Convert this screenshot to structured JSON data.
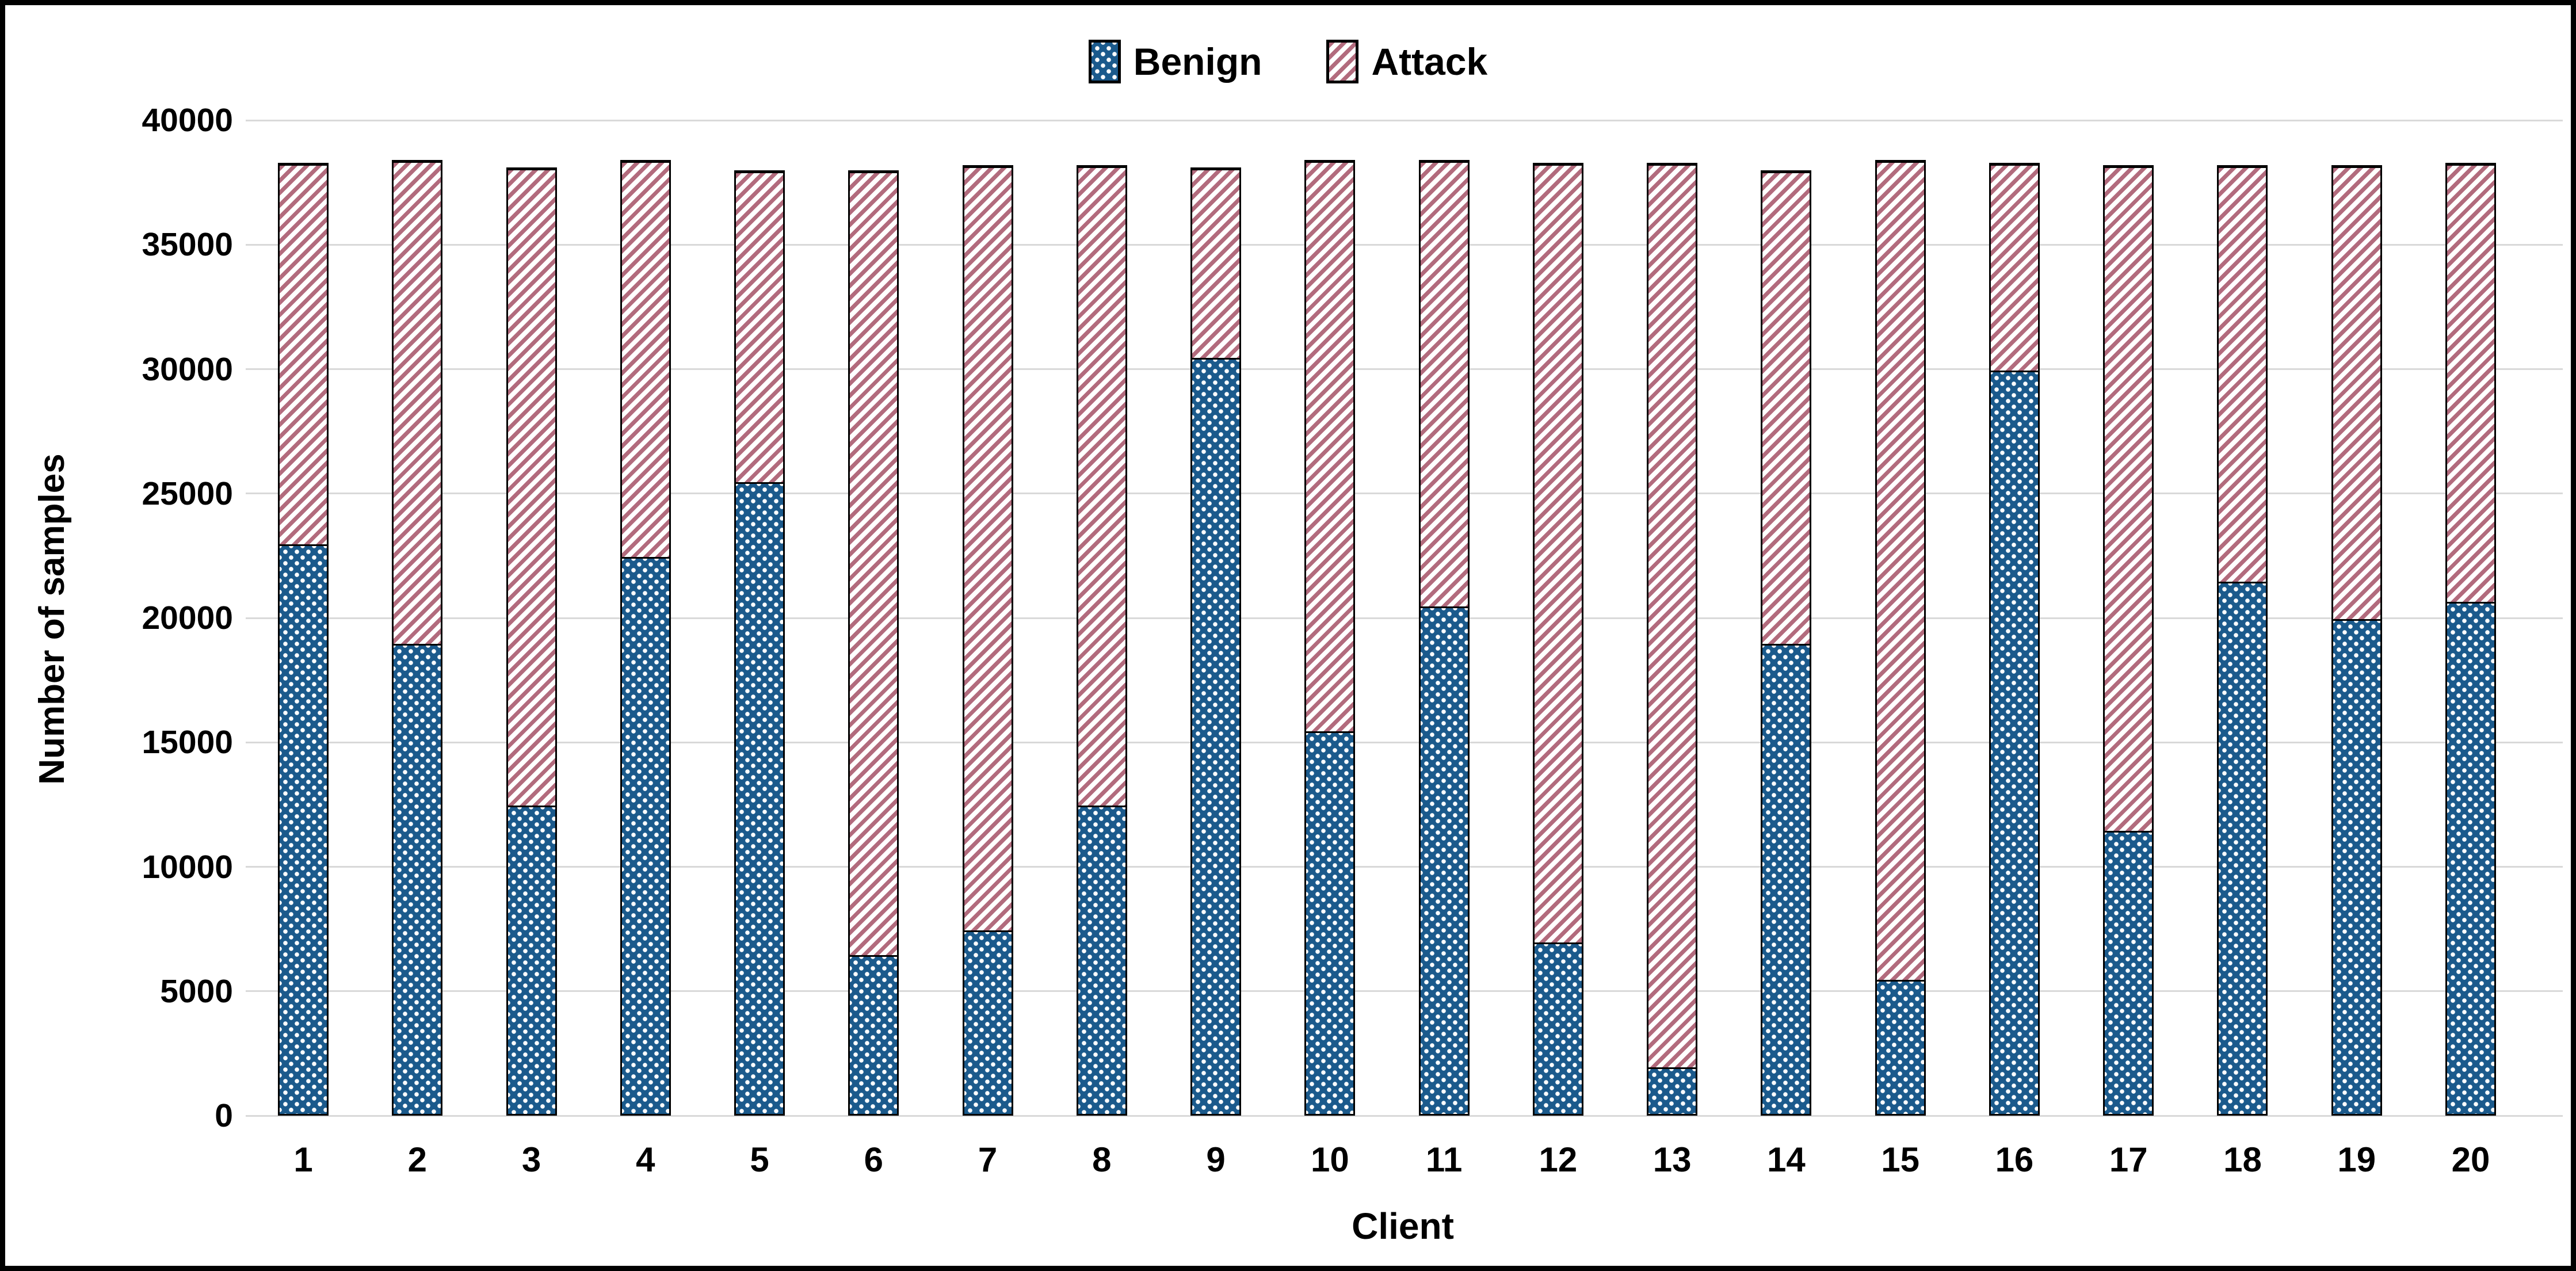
{
  "figure": {
    "legend": [
      {
        "label": "Benign",
        "series": "benign"
      },
      {
        "label": "Attack",
        "series": "attack"
      }
    ],
    "y_axis": {
      "title": "Number of samples",
      "min": 0,
      "max": 40000,
      "step": 5000,
      "tick_labels": [
        "0",
        "5000",
        "10000",
        "15000",
        "20000",
        "25000",
        "30000",
        "35000",
        "40000"
      ]
    },
    "x_axis": {
      "title": "Client",
      "tick_labels": [
        "1",
        "2",
        "3",
        "4",
        "5",
        "6",
        "7",
        "8",
        "9",
        "10",
        "11",
        "12",
        "13",
        "14",
        "15",
        "16",
        "17",
        "18",
        "19",
        "20"
      ]
    }
  },
  "chart_data": {
    "type": "bar",
    "stacked": true,
    "categories": [
      1,
      2,
      3,
      4,
      5,
      6,
      7,
      8,
      9,
      10,
      11,
      12,
      13,
      14,
      15,
      16,
      17,
      18,
      19,
      20
    ],
    "series": [
      {
        "name": "Benign",
        "values": [
          23000,
          19000,
          12500,
          22500,
          25500,
          6500,
          7500,
          12500,
          30500,
          15500,
          20500,
          7000,
          2000,
          19000,
          5500,
          30000,
          11500,
          21500,
          20000,
          20700
        ]
      },
      {
        "name": "Attack",
        "values": [
          15300,
          19400,
          25600,
          15900,
          12500,
          31500,
          30700,
          25700,
          7600,
          22900,
          17900,
          31300,
          36300,
          19000,
          32900,
          8300,
          26700,
          16700,
          18200,
          17600
        ]
      }
    ],
    "totals": [
      38300,
      38400,
      38100,
      38400,
      38000,
      38000,
      38200,
      38200,
      38100,
      38400,
      38400,
      38300,
      38300,
      38000,
      38400,
      38300,
      38200,
      38200,
      38200,
      38300
    ],
    "xlabel": "Client",
    "ylabel": "Number of samples",
    "ylim": [
      0,
      40000
    ],
    "grid": true,
    "legend_position": "top-center",
    "colors": {
      "benign_fill": "#1b5a8c",
      "attack_stripe": "#b26b7d",
      "pattern_background": "#ffffff",
      "gridline": "#d9d9d9",
      "bar_border": "#000000",
      "text": "#000000",
      "frame_border": "#000000"
    },
    "patterns": {
      "benign": "checker-dots",
      "attack": "diagonal-stripes-ascending"
    }
  }
}
